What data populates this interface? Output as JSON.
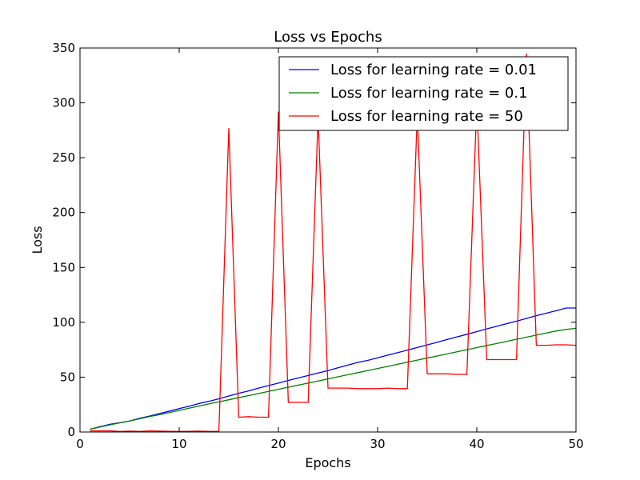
{
  "chart_data": {
    "type": "line",
    "title": "Loss vs Epochs",
    "xlabel": "Epochs",
    "ylabel": "Loss",
    "xlim": [
      0,
      50
    ],
    "ylim": [
      0,
      350
    ],
    "xticks": [
      0,
      10,
      20,
      30,
      40,
      50
    ],
    "yticks": [
      0,
      50,
      100,
      150,
      200,
      250,
      300,
      350
    ],
    "grid": false,
    "legend_position": "top-right",
    "series": [
      {
        "name": "Loss for learning rate = 0.01",
        "color": "#0000ff",
        "x": [
          1,
          2,
          3,
          4,
          5,
          6,
          7,
          8,
          9,
          10,
          11,
          12,
          13,
          14,
          15,
          16,
          17,
          18,
          19,
          20,
          21,
          22,
          23,
          24,
          25,
          26,
          27,
          28,
          29,
          30,
          31,
          32,
          33,
          34,
          35,
          36,
          37,
          38,
          39,
          40,
          41,
          42,
          43,
          44,
          45,
          46,
          47,
          48,
          49,
          50
        ],
        "values": [
          2.5,
          4.8,
          7.0,
          8.5,
          10.0,
          12.5,
          14.5,
          16.8,
          19.0,
          21.3,
          23.5,
          26.0,
          28.0,
          30.3,
          32.8,
          35.3,
          37.5,
          40.0,
          42.3,
          44.6,
          47.0,
          49.2,
          51.5,
          53.8,
          56.0,
          58.5,
          61.0,
          63.4,
          65.3,
          67.6,
          70.0,
          72.3,
          74.6,
          77.0,
          79.4,
          81.8,
          84.3,
          86.7,
          89.0,
          91.5,
          94.0,
          96.3,
          98.7,
          101.0,
          103.5,
          106.0,
          108.3,
          110.6,
          113.0,
          113.0
        ]
      },
      {
        "name": "Loss for learning rate = 0.1",
        "color": "#008000",
        "x": [
          1,
          2,
          3,
          4,
          5,
          6,
          7,
          8,
          9,
          10,
          11,
          12,
          13,
          14,
          15,
          16,
          17,
          18,
          19,
          20,
          21,
          22,
          23,
          24,
          25,
          26,
          27,
          28,
          29,
          30,
          31,
          32,
          33,
          34,
          35,
          36,
          37,
          38,
          39,
          40,
          41,
          42,
          43,
          44,
          45,
          46,
          47,
          48,
          49,
          50
        ],
        "values": [
          2.5,
          4.5,
          6.5,
          8.3,
          10.0,
          12.0,
          14.0,
          15.8,
          17.7,
          19.7,
          21.7,
          23.7,
          25.6,
          27.5,
          29.4,
          31.3,
          33.2,
          35.1,
          37.0,
          38.9,
          40.8,
          42.7,
          44.6,
          46.5,
          48.4,
          50.3,
          52.2,
          54.1,
          56.0,
          57.9,
          59.8,
          61.7,
          63.6,
          65.5,
          67.4,
          69.3,
          71.2,
          73.1,
          75.0,
          76.9,
          78.8,
          80.7,
          82.6,
          84.5,
          86.4,
          88.3,
          90.2,
          92.1,
          93.5,
          94.5
        ]
      },
      {
        "name": "Loss for learning rate = 50",
        "color": "#ff0000",
        "x": [
          1,
          2,
          3,
          4,
          5,
          6,
          7,
          8,
          9,
          10,
          11,
          12,
          13,
          14,
          15,
          16,
          17,
          18,
          19,
          20,
          21,
          22,
          23,
          24,
          25,
          26,
          27,
          28,
          29,
          30,
          31,
          32,
          33,
          34,
          35,
          36,
          37,
          38,
          39,
          40,
          41,
          42,
          43,
          44,
          45,
          46,
          47,
          48,
          49,
          50
        ],
        "values": [
          1.0,
          1.0,
          1.0,
          0.5,
          0.8,
          0.5,
          1.0,
          0.8,
          0.6,
          0.5,
          0.6,
          0.8,
          0.5,
          0.5,
          277,
          13.5,
          14.0,
          13.5,
          13.5,
          292,
          27.0,
          27.0,
          27.0,
          288,
          40.0,
          40.0,
          40.0,
          39.5,
          39.5,
          39.5,
          40.0,
          39.5,
          39.5,
          290,
          53.0,
          53.0,
          53.0,
          52.5,
          52.5,
          300,
          66.0,
          66.0,
          66.0,
          66.0,
          345,
          79.0,
          79.0,
          79.5,
          79.5,
          79.0
        ]
      }
    ]
  }
}
